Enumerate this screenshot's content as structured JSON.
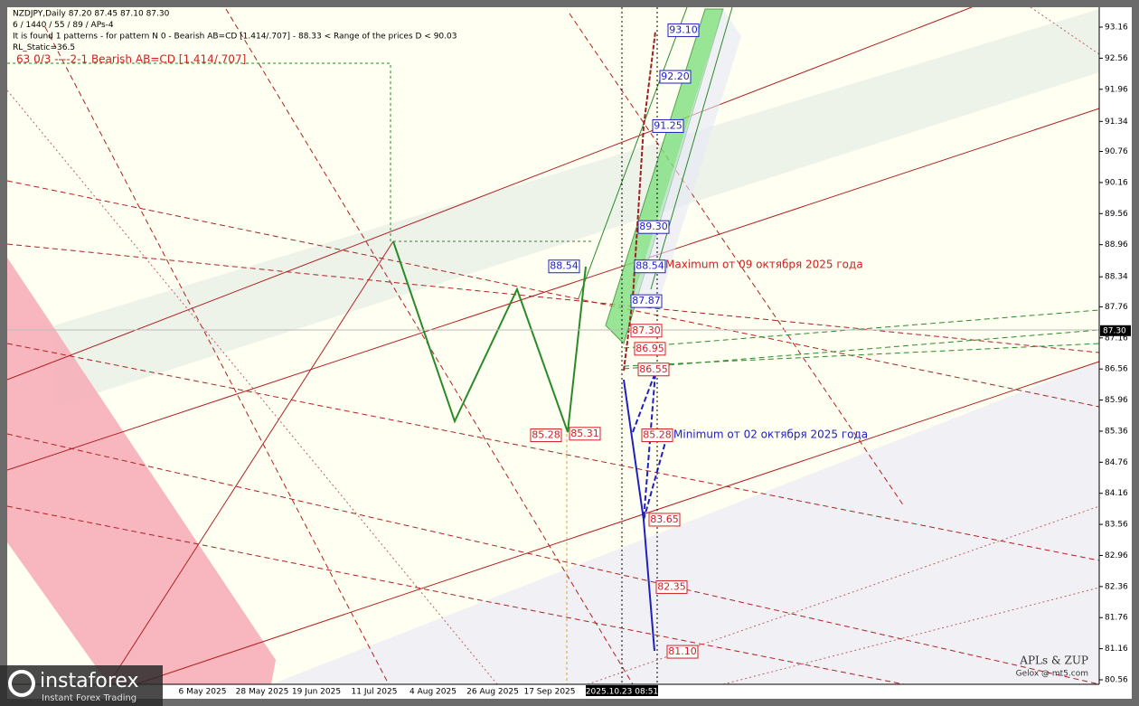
{
  "chart_data": {
    "type": "candlestick",
    "header": [
      "NZDJPY,Daily  87.20 87.45 87.10 87.30",
      "6 / 1440 / 55 / 89 / APs-4",
      "It is found 1 patterns  -  for pattern N 0 - Bearish AB=CD [1.414/.707] - 88.33 < Range of the prices D < 90.03",
      "RL_Static=36.5"
    ],
    "pattern_line": "63      0/3      ----2-1      Bearish AB=CD [1.414/.707]",
    "ylim": [
      80.56,
      93.16
    ],
    "yticks": [
      93.16,
      92.56,
      91.96,
      91.34,
      90.76,
      90.16,
      89.56,
      88.96,
      88.34,
      87.76,
      87.16,
      86.56,
      85.96,
      85.36,
      84.76,
      84.16,
      83.56,
      82.96,
      82.36,
      81.76,
      81.16,
      80.56
    ],
    "current_price": {
      "value": 87.3,
      "label": "87.30"
    },
    "dates": [
      "6 May 2025",
      "28 May 2025",
      "19 Jun 2025",
      "11 Jul 2025",
      "4 Aug 2025",
      "26 Aug 2025",
      "17 Sep 2025",
      "2025.10.23 08:51"
    ],
    "levels_blue": [
      {
        "value": 93.1,
        "label": "93.10"
      },
      {
        "value": 92.2,
        "label": "92.20"
      },
      91.25,
      {
        "value": 89.3,
        "label": "89.30"
      },
      88.54,
      87.87,
      88.54
    ],
    "levels_red": [
      {
        "value": 87.3,
        "label": "87.30"
      },
      86.95,
      86.55,
      85.28,
      83.65,
      82.35,
      {
        "value": 81.1,
        "label": "81.10"
      },
      85.28,
      85.31
    ],
    "annotations": [
      "Maximum от 09 октября 2025 года",
      "Minimum от 02 октября 2025 года"
    ],
    "credits": [
      "APLs & ZUP",
      "Gelox @ mt5.com"
    ],
    "watermark": [
      "instaforex",
      "Instant Forex Trading"
    ]
  }
}
